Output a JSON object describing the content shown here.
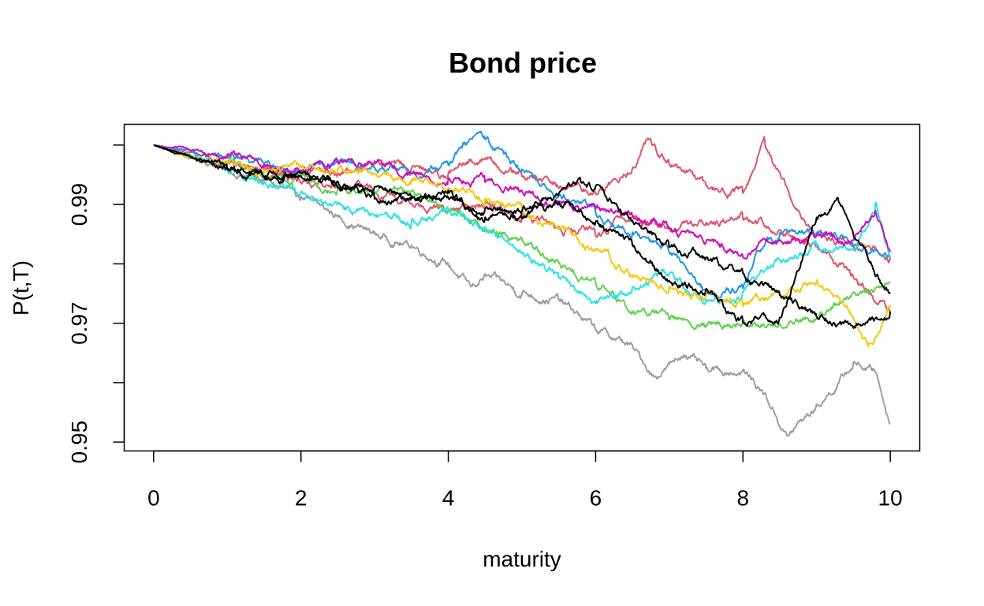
{
  "chart_data": {
    "type": "line",
    "title": "Bond price",
    "xlabel": "maturity",
    "ylabel": "P(t,T)",
    "xlim": [
      -0.4,
      10.4
    ],
    "ylim": [
      0.9485,
      1.0035
    ],
    "x_ticks": [
      0,
      2,
      4,
      6,
      8,
      10
    ],
    "y_ticks": [
      0.95,
      0.96,
      0.97,
      0.98,
      0.99,
      1.0
    ],
    "y_tick_labels": [
      "0.95",
      "",
      "0.97",
      "",
      "0.99",
      ""
    ],
    "grid": false,
    "legend": "none",
    "series": [
      {
        "color": "#9E9E9E",
        "points": [
          [
            0,
            1.0
          ],
          [
            0.5,
            0.998
          ],
          [
            1,
            0.996
          ],
          [
            1.5,
            0.994
          ],
          [
            2,
            0.991
          ],
          [
            2.5,
            0.988
          ],
          [
            3,
            0.985
          ],
          [
            3.5,
            0.983
          ],
          [
            4,
            0.98
          ],
          [
            4.3,
            0.976
          ],
          [
            4.5,
            0.978
          ],
          [
            5,
            0.975
          ],
          [
            5.5,
            0.974
          ],
          [
            6,
            0.969
          ],
          [
            6.5,
            0.966
          ],
          [
            6.8,
            0.961
          ],
          [
            7,
            0.963
          ],
          [
            7.2,
            0.965
          ],
          [
            7.5,
            0.962
          ],
          [
            8,
            0.962
          ],
          [
            8.3,
            0.958
          ],
          [
            8.6,
            0.951
          ],
          [
            9,
            0.956
          ],
          [
            9.3,
            0.96
          ],
          [
            9.5,
            0.963
          ],
          [
            9.8,
            0.962
          ],
          [
            10,
            0.953
          ]
        ]
      },
      {
        "color": "#DF536B",
        "points": [
          [
            0,
            1.0
          ],
          [
            0.5,
            0.998
          ],
          [
            1,
            0.997
          ],
          [
            1.5,
            0.996
          ],
          [
            2,
            0.995
          ],
          [
            2.5,
            0.995
          ],
          [
            3,
            0.997
          ],
          [
            3.5,
            0.996
          ],
          [
            4,
            0.995
          ],
          [
            4.5,
            0.998
          ],
          [
            5,
            0.995
          ],
          [
            5.5,
            0.993
          ],
          [
            6,
            0.992
          ],
          [
            6.5,
            0.996
          ],
          [
            6.7,
            1.001
          ],
          [
            7,
            0.997
          ],
          [
            7.5,
            0.993
          ],
          [
            8,
            0.992
          ],
          [
            8.3,
            1.0
          ],
          [
            8.6,
            0.993
          ],
          [
            9,
            0.985
          ],
          [
            9.5,
            0.983
          ],
          [
            10,
            0.981
          ]
        ]
      },
      {
        "color": "#DF536B",
        "points": [
          [
            0,
            1.0
          ],
          [
            1,
            0.997
          ],
          [
            2,
            0.994
          ],
          [
            3,
            0.992
          ],
          [
            3.5,
            0.99
          ],
          [
            4,
            0.989
          ],
          [
            4.5,
            0.99
          ],
          [
            5,
            0.988
          ],
          [
            5.5,
            0.986
          ],
          [
            6,
            0.985
          ],
          [
            6.5,
            0.988
          ],
          [
            7,
            0.986
          ],
          [
            7.5,
            0.987
          ],
          [
            8,
            0.988
          ],
          [
            8.5,
            0.986
          ],
          [
            9,
            0.983
          ],
          [
            9.5,
            0.978
          ],
          [
            10,
            0.972
          ]
        ]
      },
      {
        "color": "#61D04F",
        "points": [
          [
            0,
            1.0
          ],
          [
            0.5,
            0.998
          ],
          [
            1,
            0.997
          ],
          [
            1.5,
            0.995
          ],
          [
            2,
            0.995
          ],
          [
            2.5,
            0.993
          ],
          [
            3,
            0.992
          ],
          [
            3.5,
            0.992
          ],
          [
            4,
            0.989
          ],
          [
            4.5,
            0.986
          ],
          [
            5,
            0.984
          ],
          [
            5.5,
            0.98
          ],
          [
            6,
            0.977
          ],
          [
            6.5,
            0.972
          ],
          [
            7,
            0.971
          ],
          [
            7.5,
            0.97
          ],
          [
            8,
            0.97
          ],
          [
            8.5,
            0.97
          ],
          [
            9,
            0.971
          ],
          [
            9.5,
            0.975
          ],
          [
            10,
            0.977
          ]
        ]
      },
      {
        "color": "#2297E6",
        "points": [
          [
            0,
            1.0
          ],
          [
            0.5,
            0.999
          ],
          [
            1,
            0.998
          ],
          [
            1.5,
            0.997
          ],
          [
            2,
            0.996
          ],
          [
            2.5,
            0.997
          ],
          [
            3,
            0.996
          ],
          [
            3.5,
            0.995
          ],
          [
            4,
            0.997
          ],
          [
            4.2,
            1.0
          ],
          [
            4.5,
            1.001
          ],
          [
            4.8,
            0.998
          ],
          [
            5,
            0.996
          ],
          [
            5.5,
            0.992
          ],
          [
            6,
            0.989
          ],
          [
            6.5,
            0.985
          ],
          [
            7,
            0.982
          ],
          [
            7.5,
            0.975
          ],
          [
            8,
            0.976
          ],
          [
            8.2,
            0.982
          ],
          [
            8.5,
            0.985
          ],
          [
            9,
            0.985
          ],
          [
            9.5,
            0.983
          ],
          [
            10,
            0.981
          ]
        ]
      },
      {
        "color": "#28E2E5",
        "points": [
          [
            0,
            1.0
          ],
          [
            0.5,
            0.998
          ],
          [
            1,
            0.996
          ],
          [
            1.5,
            0.994
          ],
          [
            2,
            0.992
          ],
          [
            2.5,
            0.99
          ],
          [
            3,
            0.988
          ],
          [
            3.5,
            0.987
          ],
          [
            4,
            0.989
          ],
          [
            4.5,
            0.986
          ],
          [
            5,
            0.982
          ],
          [
            5.5,
            0.978
          ],
          [
            6,
            0.973
          ],
          [
            6.5,
            0.976
          ],
          [
            7,
            0.978
          ],
          [
            7.5,
            0.974
          ],
          [
            8,
            0.975
          ],
          [
            8.5,
            0.981
          ],
          [
            9,
            0.983
          ],
          [
            9.5,
            0.982
          ],
          [
            9.8,
            0.99
          ],
          [
            10,
            0.981
          ]
        ]
      },
      {
        "color": "#CD0BBC",
        "points": [
          [
            0,
            1.0
          ],
          [
            0.5,
            0.999
          ],
          [
            1,
            0.998
          ],
          [
            1.5,
            0.997
          ],
          [
            2,
            0.996
          ],
          [
            2.5,
            0.997
          ],
          [
            3,
            0.997
          ],
          [
            3.5,
            0.995
          ],
          [
            4,
            0.994
          ],
          [
            4.5,
            0.994
          ],
          [
            5,
            0.992
          ],
          [
            5.5,
            0.99
          ],
          [
            6,
            0.989
          ],
          [
            6.5,
            0.988
          ],
          [
            7,
            0.986
          ],
          [
            7.5,
            0.984
          ],
          [
            8,
            0.981
          ],
          [
            8.2,
            0.983
          ],
          [
            8.5,
            0.984
          ],
          [
            9,
            0.985
          ],
          [
            9.5,
            0.984
          ],
          [
            9.8,
            0.989
          ],
          [
            10,
            0.982
          ]
        ]
      },
      {
        "color": "#F5C710",
        "points": [
          [
            0,
            1.0
          ],
          [
            0.5,
            0.998
          ],
          [
            1,
            0.997
          ],
          [
            1.5,
            0.996
          ],
          [
            2,
            0.996
          ],
          [
            2.5,
            0.996
          ],
          [
            3,
            0.995
          ],
          [
            3.5,
            0.994
          ],
          [
            4,
            0.993
          ],
          [
            4.5,
            0.991
          ],
          [
            5,
            0.989
          ],
          [
            5.5,
            0.986
          ],
          [
            6,
            0.982
          ],
          [
            6.5,
            0.978
          ],
          [
            7,
            0.976
          ],
          [
            7.5,
            0.975
          ],
          [
            8,
            0.973
          ],
          [
            8.5,
            0.975
          ],
          [
            9,
            0.977
          ],
          [
            9.5,
            0.971
          ],
          [
            9.7,
            0.966
          ],
          [
            9.8,
            0.968
          ],
          [
            10,
            0.973
          ]
        ]
      },
      {
        "color": "#000000",
        "points": [
          [
            0,
            1.0
          ],
          [
            0.5,
            0.998
          ],
          [
            1,
            0.996
          ],
          [
            1.5,
            0.995
          ],
          [
            2,
            0.995
          ],
          [
            2.5,
            0.994
          ],
          [
            3,
            0.993
          ],
          [
            3.5,
            0.991
          ],
          [
            4,
            0.991
          ],
          [
            4.5,
            0.989
          ],
          [
            5,
            0.989
          ],
          [
            5.5,
            0.992
          ],
          [
            5.8,
            0.994
          ],
          [
            6,
            0.993
          ],
          [
            6.5,
            0.987
          ],
          [
            7,
            0.983
          ],
          [
            7.5,
            0.981
          ],
          [
            8,
            0.978
          ],
          [
            8.5,
            0.975
          ],
          [
            9,
            0.971
          ],
          [
            9.5,
            0.969
          ],
          [
            10,
            0.972
          ]
        ]
      },
      {
        "color": "#000000",
        "points": [
          [
            0,
            1.0
          ],
          [
            0.5,
            0.998
          ],
          [
            1,
            0.996
          ],
          [
            1.5,
            0.995
          ],
          [
            2,
            0.995
          ],
          [
            2.5,
            0.993
          ],
          [
            3,
            0.991
          ],
          [
            3.5,
            0.991
          ],
          [
            4,
            0.992
          ],
          [
            4.5,
            0.988
          ],
          [
            5,
            0.988
          ],
          [
            5.5,
            0.99
          ],
          [
            6,
            0.987
          ],
          [
            6.5,
            0.983
          ],
          [
            7,
            0.977
          ],
          [
            7.5,
            0.976
          ],
          [
            7.8,
            0.972
          ],
          [
            8,
            0.97
          ],
          [
            8.5,
            0.971
          ],
          [
            9,
            0.988
          ],
          [
            9.3,
            0.99
          ],
          [
            9.5,
            0.985
          ],
          [
            10,
            0.975
          ]
        ]
      }
    ]
  }
}
